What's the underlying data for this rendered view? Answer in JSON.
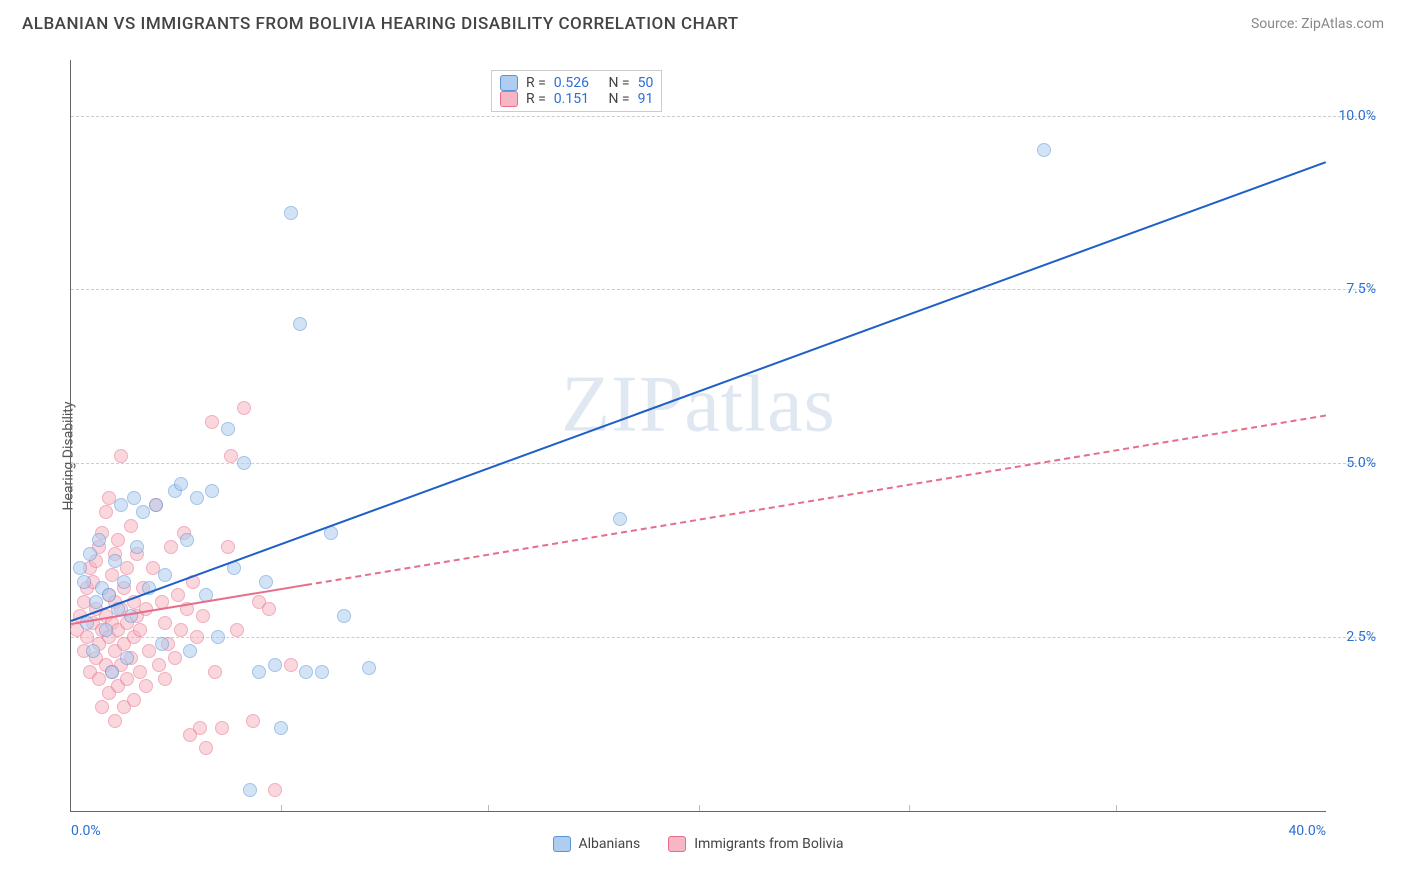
{
  "header": {
    "title": "ALBANIAN VS IMMIGRANTS FROM BOLIVIA HEARING DISABILITY CORRELATION CHART",
    "source": "Source: ZipAtlas.com"
  },
  "axes": {
    "ylabel": "Hearing Disability",
    "xlim": [
      0,
      40
    ],
    "ylim": [
      0,
      10.8
    ],
    "yticks": [
      {
        "v": 2.5,
        "label": "2.5%"
      },
      {
        "v": 5.0,
        "label": "5.0%"
      },
      {
        "v": 7.5,
        "label": "7.5%"
      },
      {
        "v": 10.0,
        "label": "10.0%"
      }
    ],
    "xminor": [
      6.7,
      13.3,
      20,
      26.7,
      33.3
    ],
    "xticks": [
      {
        "v": 0,
        "label": "0.0%",
        "align": "left"
      },
      {
        "v": 40,
        "label": "40.0%",
        "align": "right"
      }
    ],
    "grid_color": "#d0d0d0"
  },
  "watermark": "ZIPatlas",
  "series": {
    "a": {
      "name": "Albanians",
      "legend_label": "Albanians",
      "R": "0.526",
      "N": "50",
      "color_fill": "#aecdf0",
      "color_stroke": "#5a93d6",
      "line_color": "#1f5fc8",
      "line_width": 2.5,
      "line_dash": "solid",
      "trend": {
        "x1": 0,
        "y1": 2.75,
        "x2": 40,
        "y2": 9.35,
        "xdata_max": 40
      },
      "points": [
        [
          0.3,
          3.5
        ],
        [
          0.4,
          3.3
        ],
        [
          0.5,
          2.7
        ],
        [
          0.6,
          3.7
        ],
        [
          0.7,
          2.3
        ],
        [
          0.8,
          3.0
        ],
        [
          0.9,
          3.9
        ],
        [
          1.0,
          3.2
        ],
        [
          1.1,
          2.6
        ],
        [
          1.2,
          3.1
        ],
        [
          1.3,
          2.0
        ],
        [
          1.4,
          3.6
        ],
        [
          1.5,
          2.9
        ],
        [
          1.6,
          4.4
        ],
        [
          1.7,
          3.3
        ],
        [
          1.8,
          2.2
        ],
        [
          1.9,
          2.8
        ],
        [
          2.0,
          4.5
        ],
        [
          2.1,
          3.8
        ],
        [
          2.3,
          4.3
        ],
        [
          2.5,
          3.2
        ],
        [
          2.7,
          4.4
        ],
        [
          2.9,
          2.4
        ],
        [
          3.0,
          3.4
        ],
        [
          3.3,
          4.6
        ],
        [
          3.5,
          4.7
        ],
        [
          3.7,
          3.9
        ],
        [
          3.8,
          2.3
        ],
        [
          4.0,
          4.5
        ],
        [
          4.3,
          3.1
        ],
        [
          4.5,
          4.6
        ],
        [
          4.7,
          2.5
        ],
        [
          5.0,
          5.5
        ],
        [
          5.2,
          3.5
        ],
        [
          5.5,
          5.0
        ],
        [
          5.7,
          0.3
        ],
        [
          6.0,
          2.0
        ],
        [
          6.2,
          3.3
        ],
        [
          6.5,
          2.1
        ],
        [
          6.7,
          1.2
        ],
        [
          7.0,
          8.6
        ],
        [
          7.3,
          7.0
        ],
        [
          7.5,
          2.0
        ],
        [
          8.0,
          2.0
        ],
        [
          8.3,
          4.0
        ],
        [
          8.7,
          2.8
        ],
        [
          9.5,
          2.05
        ],
        [
          17.5,
          4.2
        ],
        [
          31.0,
          9.5
        ]
      ]
    },
    "b": {
      "name": "Immigrants from Bolivia",
      "legend_label": "Immigrants from Bolivia",
      "R": "0.151",
      "N": "91",
      "color_fill": "#f6b6c3",
      "color_stroke": "#e86d8a",
      "line_color": "#e86d8a",
      "line_width": 2,
      "line_dash": "dashed",
      "trend": {
        "x1": 0,
        "y1": 2.7,
        "x2": 40,
        "y2": 5.7,
        "xdata_max": 7.5
      },
      "points": [
        [
          0.2,
          2.6
        ],
        [
          0.3,
          2.8
        ],
        [
          0.4,
          3.0
        ],
        [
          0.4,
          2.3
        ],
        [
          0.5,
          2.5
        ],
        [
          0.5,
          3.2
        ],
        [
          0.6,
          2.0
        ],
        [
          0.6,
          3.5
        ],
        [
          0.7,
          2.7
        ],
        [
          0.7,
          3.3
        ],
        [
          0.8,
          2.2
        ],
        [
          0.8,
          2.9
        ],
        [
          0.8,
          3.6
        ],
        [
          0.9,
          1.9
        ],
        [
          0.9,
          2.4
        ],
        [
          0.9,
          3.8
        ],
        [
          1.0,
          1.5
        ],
        [
          1.0,
          2.6
        ],
        [
          1.0,
          4.0
        ],
        [
          1.1,
          2.1
        ],
        [
          1.1,
          2.8
        ],
        [
          1.1,
          4.3
        ],
        [
          1.2,
          1.7
        ],
        [
          1.2,
          2.5
        ],
        [
          1.2,
          3.1
        ],
        [
          1.2,
          4.5
        ],
        [
          1.3,
          2.0
        ],
        [
          1.3,
          2.7
        ],
        [
          1.3,
          3.4
        ],
        [
          1.4,
          1.3
        ],
        [
          1.4,
          2.3
        ],
        [
          1.4,
          3.0
        ],
        [
          1.4,
          3.7
        ],
        [
          1.5,
          1.8
        ],
        [
          1.5,
          2.6
        ],
        [
          1.5,
          3.9
        ],
        [
          1.6,
          2.1
        ],
        [
          1.6,
          2.9
        ],
        [
          1.6,
          5.1
        ],
        [
          1.7,
          1.5
        ],
        [
          1.7,
          2.4
        ],
        [
          1.7,
          3.2
        ],
        [
          1.8,
          1.9
        ],
        [
          1.8,
          2.7
        ],
        [
          1.8,
          3.5
        ],
        [
          1.9,
          2.2
        ],
        [
          1.9,
          4.1
        ],
        [
          2.0,
          1.6
        ],
        [
          2.0,
          2.5
        ],
        [
          2.0,
          3.0
        ],
        [
          2.1,
          2.8
        ],
        [
          2.1,
          3.7
        ],
        [
          2.2,
          2.0
        ],
        [
          2.2,
          2.6
        ],
        [
          2.3,
          3.2
        ],
        [
          2.4,
          1.8
        ],
        [
          2.4,
          2.9
        ],
        [
          2.5,
          2.3
        ],
        [
          2.6,
          3.5
        ],
        [
          2.7,
          4.4
        ],
        [
          2.8,
          2.1
        ],
        [
          2.9,
          3.0
        ],
        [
          3.0,
          1.9
        ],
        [
          3.0,
          2.7
        ],
        [
          3.1,
          2.4
        ],
        [
          3.2,
          3.8
        ],
        [
          3.3,
          2.2
        ],
        [
          3.4,
          3.1
        ],
        [
          3.5,
          2.6
        ],
        [
          3.6,
          4.0
        ],
        [
          3.7,
          2.9
        ],
        [
          3.8,
          1.1
        ],
        [
          3.9,
          3.3
        ],
        [
          4.0,
          2.5
        ],
        [
          4.1,
          1.2
        ],
        [
          4.2,
          2.8
        ],
        [
          4.3,
          0.9
        ],
        [
          4.5,
          5.6
        ],
        [
          4.6,
          2.0
        ],
        [
          4.8,
          1.2
        ],
        [
          5.0,
          3.8
        ],
        [
          5.1,
          5.1
        ],
        [
          5.3,
          2.6
        ],
        [
          5.5,
          5.8
        ],
        [
          5.8,
          1.3
        ],
        [
          6.0,
          3.0
        ],
        [
          6.3,
          2.9
        ],
        [
          6.5,
          0.3
        ],
        [
          7.0,
          2.1
        ]
      ]
    }
  },
  "legend_top_labels": {
    "R": "R =",
    "N": "N ="
  },
  "colors": {
    "tick_label": "#2a6fd6",
    "title": "#444444",
    "source": "#888888"
  }
}
